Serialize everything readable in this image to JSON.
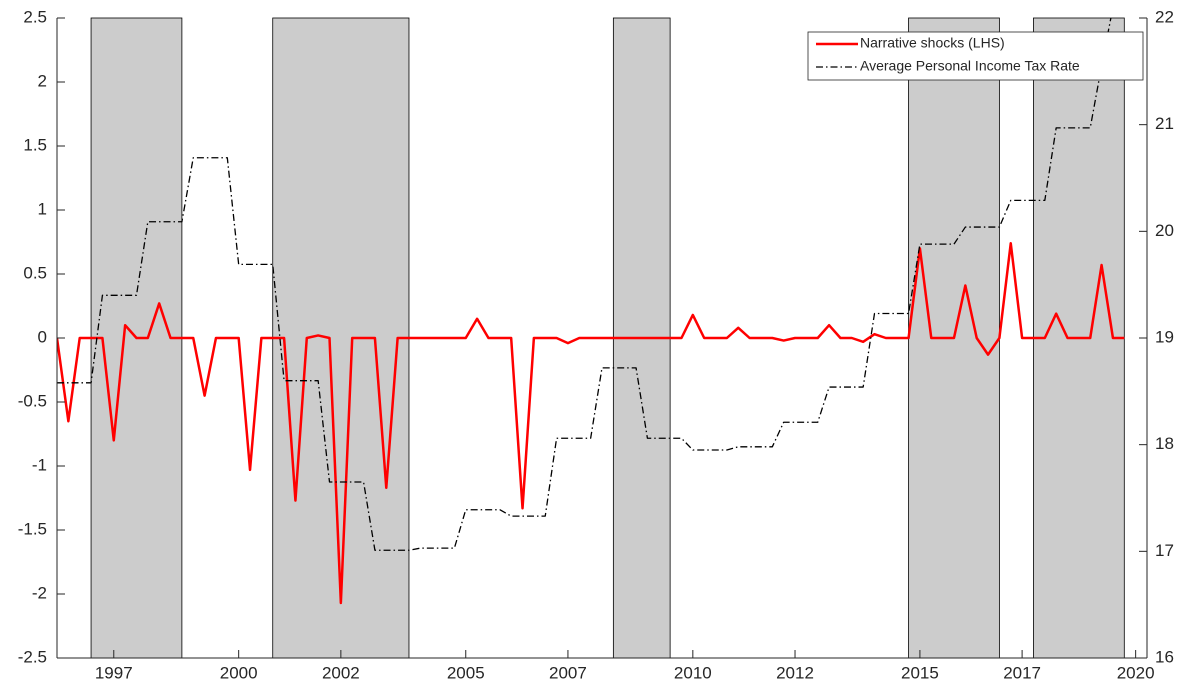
{
  "chart_data": {
    "type": "line",
    "x": [
      1996,
      1996.25,
      1996.5,
      1996.75,
      1997,
      1997.25,
      1997.5,
      1997.75,
      1998,
      1998.25,
      1998.5,
      1998.75,
      1999,
      1999.25,
      1999.5,
      1999.75,
      2000,
      2000.25,
      2000.5,
      2000.75,
      2001,
      2001.25,
      2001.5,
      2001.75,
      2002,
      2002.25,
      2002.5,
      2002.75,
      2003,
      2003.25,
      2003.5,
      2003.75,
      2004,
      2004.25,
      2004.5,
      2004.75,
      2005,
      2005.25,
      2005.5,
      2005.75,
      2006,
      2006.25,
      2006.5,
      2006.75,
      2007,
      2007.25,
      2007.5,
      2007.75,
      2008,
      2008.25,
      2008.5,
      2008.75,
      2009,
      2009.25,
      2009.5,
      2009.75,
      2010,
      2010.25,
      2010.5,
      2010.75,
      2011,
      2011.25,
      2011.5,
      2011.75,
      2012,
      2012.25,
      2012.5,
      2012.75,
      2013,
      2013.25,
      2013.5,
      2013.75,
      2014,
      2014.25,
      2014.5,
      2014.75,
      2015,
      2015.25,
      2015.5,
      2015.75,
      2016,
      2016.25,
      2016.5,
      2016.75,
      2017,
      2017.25,
      2017.5,
      2017.75,
      2018,
      2018.25,
      2018.5,
      2018.75,
      2019,
      2019.25,
      2019.5
    ],
    "series": [
      {
        "name": "Narrative shocks (LHS)",
        "color": "#ff0000",
        "style": "solid",
        "values": [
          0,
          -0.65,
          0,
          0,
          0,
          -0.8,
          0.1,
          0,
          0,
          0.27,
          0,
          0,
          0,
          -0.45,
          0,
          0,
          0,
          -1.03,
          0,
          0,
          0,
          -1.27,
          0,
          0.02,
          0,
          -2.07,
          0,
          0,
          0,
          -1.17,
          0,
          0,
          0,
          0,
          0,
          0,
          0,
          0.15,
          0,
          0,
          0,
          -1.33,
          0,
          0,
          0,
          -0.04,
          0,
          0,
          0,
          0,
          0,
          0,
          0,
          0,
          0,
          0,
          0.18,
          0,
          0,
          0,
          0.08,
          0,
          0,
          0,
          -0.02,
          0,
          0,
          0,
          0.1,
          0,
          0,
          -0.03,
          0.03,
          0,
          0,
          0,
          0.7,
          0,
          0,
          0,
          0.41,
          0,
          -0.13,
          0,
          0.74,
          0,
          0,
          0,
          0.19,
          0,
          0,
          0,
          0.57,
          0,
          0
        ]
      },
      {
        "name": "Average Personal Income Tax Rate",
        "color": "#000000",
        "style": "dashdot",
        "axis": "y2",
        "values": [
          18.58,
          18.58,
          18.58,
          18.58,
          19.4,
          19.4,
          19.4,
          19.4,
          20.09,
          20.09,
          20.09,
          20.09,
          20.69,
          20.69,
          20.69,
          20.69,
          19.69,
          19.69,
          19.69,
          19.69,
          18.6,
          18.6,
          18.6,
          18.6,
          17.65,
          17.65,
          17.65,
          17.65,
          17.01,
          17.01,
          17.01,
          17.01,
          17.03,
          17.03,
          17.03,
          17.03,
          17.39,
          17.39,
          17.39,
          17.39,
          17.33,
          17.33,
          17.33,
          17.33,
          18.06,
          18.06,
          18.06,
          18.06,
          18.72,
          18.72,
          18.72,
          18.72,
          18.06,
          18.06,
          18.06,
          18.06,
          17.95,
          17.95,
          17.95,
          17.95,
          17.98,
          17.98,
          17.98,
          17.98,
          18.21,
          18.21,
          18.21,
          18.21,
          18.54,
          18.54,
          18.54,
          18.54,
          19.23,
          19.23,
          19.23,
          19.23,
          19.88,
          19.88,
          19.88,
          19.88,
          20.04,
          20.04,
          20.04,
          20.04,
          20.29,
          20.29,
          20.29,
          20.29,
          20.97,
          20.97,
          20.97,
          20.97,
          21.55,
          22.1,
          22.4
        ]
      }
    ],
    "shaded_periods": [
      [
        1996.75,
        1998.75
      ],
      [
        2000.75,
        2003.75
      ],
      [
        2008.25,
        2009.5
      ],
      [
        2014.75,
        2016.75
      ],
      [
        2017.5,
        2019.5
      ]
    ],
    "shade_color": "#cccccc",
    "xlim": [
      1996,
      2020
    ],
    "xticks": [
      {
        "value": 1997.25,
        "label": "1997"
      },
      {
        "value": 2000,
        "label": "2000"
      },
      {
        "value": 2002.25,
        "label": "2002"
      },
      {
        "value": 2005,
        "label": "2005"
      },
      {
        "value": 2007.25,
        "label": "2007"
      },
      {
        "value": 2010,
        "label": "2010"
      },
      {
        "value": 2012.25,
        "label": "2012"
      },
      {
        "value": 2015,
        "label": "2015"
      },
      {
        "value": 2017.25,
        "label": "2017"
      },
      {
        "value": 2019.75,
        "label": "2020"
      }
    ],
    "ylim": [
      -2.5,
      2.5
    ],
    "yticks": [
      -2.5,
      -2,
      -1.5,
      -1,
      -0.5,
      0,
      0.5,
      1,
      1.5,
      2,
      2.5
    ],
    "y2lim": [
      16,
      22
    ],
    "y2ticks": [
      16,
      17,
      18,
      19,
      20,
      21,
      22
    ],
    "legend": "top-right"
  }
}
